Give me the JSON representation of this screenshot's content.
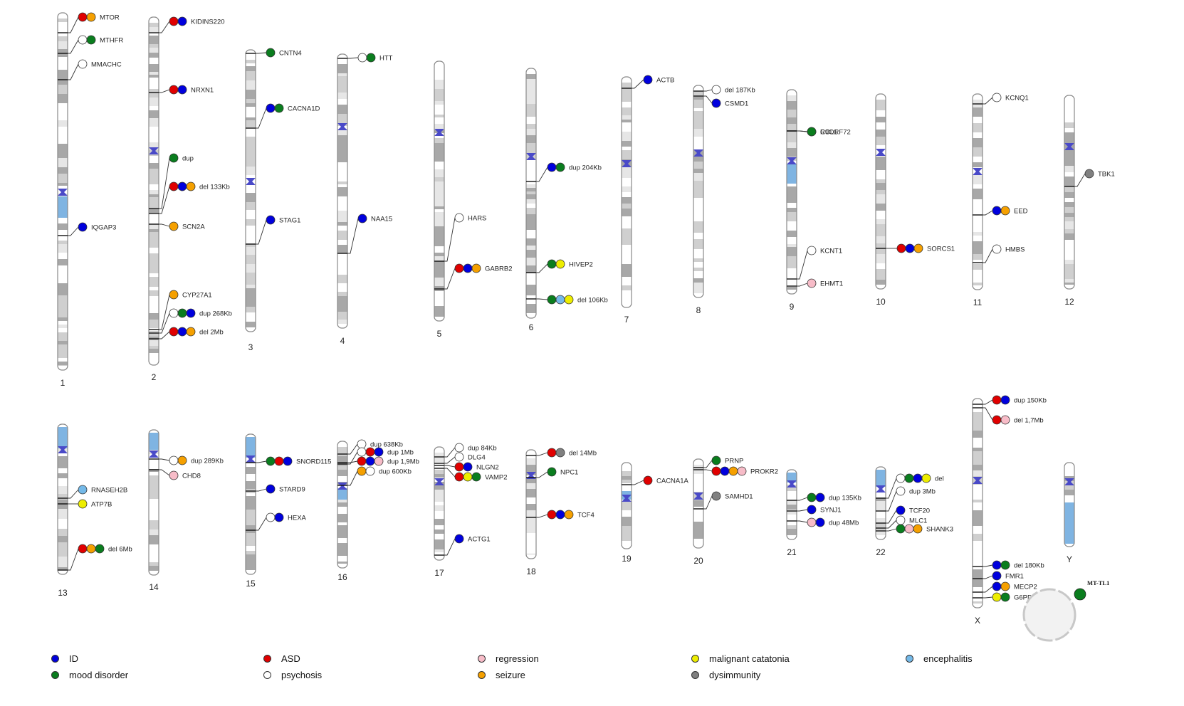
{
  "colors": {
    "ID": "#0000dd",
    "mood disorder": "#0a7d1e",
    "ASD": "#e00000",
    "psychosis": "#ffffff",
    "regression": "#f7bcc8",
    "seizure": "#f5a000",
    "malignant catatonia": "#eded00",
    "dysimmunity": "#808080",
    "encephalitis": "#74b9e8"
  },
  "legend": [
    {
      "label": "ID",
      "color_key": "ID"
    },
    {
      "label": "mood disorder",
      "color_key": "mood disorder"
    },
    {
      "label": "ASD",
      "color_key": "ASD"
    },
    {
      "label": "psychosis",
      "color_key": "psychosis"
    },
    {
      "label": "regression",
      "color_key": "regression"
    },
    {
      "label": "seizure",
      "color_key": "seizure"
    },
    {
      "label": "malignant catatonia",
      "color_key": "malignant catatonia"
    },
    {
      "label": "dysimmunity",
      "color_key": "dysimmunity"
    },
    {
      "label": "encephalitis",
      "color_key": "encephalitis"
    }
  ],
  "chromosomes": [
    {
      "name": "1",
      "loci": [
        {
          "label": "MTOR",
          "d": [
            "ASD",
            "seizure"
          ]
        },
        {
          "label": "MTHFR",
          "d": [
            "psychosis",
            "mood disorder"
          ]
        },
        {
          "label": "MMACHC",
          "d": [
            "psychosis"
          ]
        },
        {
          "label": "IQGAP3",
          "d": [
            "ID"
          ]
        }
      ]
    },
    {
      "name": "2",
      "loci": [
        {
          "label": "KIDINS220",
          "d": [
            "ASD",
            "ID"
          ]
        },
        {
          "label": "NRXN1",
          "d": [
            "ASD",
            "ID"
          ]
        },
        {
          "label": "dup",
          "d": [
            "mood disorder"
          ]
        },
        {
          "label": "del 133Kb",
          "d": [
            "ASD",
            "ID",
            "seizure"
          ]
        },
        {
          "label": "SCN2A",
          "d": [
            "seizure"
          ]
        },
        {
          "label": "CYP27A1",
          "d": [
            "seizure"
          ]
        },
        {
          "label": "dup 268Kb",
          "d": [
            "psychosis",
            "mood disorder",
            "ID"
          ]
        },
        {
          "label": "del 2Mb",
          "d": [
            "ASD",
            "ID",
            "seizure"
          ]
        }
      ]
    },
    {
      "name": "3",
      "loci": [
        {
          "label": "CNTN4",
          "d": [
            "mood disorder"
          ]
        },
        {
          "label": "CACNA1D",
          "d": [
            "ID",
            "mood disorder"
          ]
        },
        {
          "label": "STAG1",
          "d": [
            "ID"
          ]
        }
      ]
    },
    {
      "name": "4",
      "loci": [
        {
          "label": "HTT",
          "d": [
            "psychosis",
            "mood disorder"
          ]
        },
        {
          "label": "NAA15",
          "d": [
            "ID"
          ]
        }
      ]
    },
    {
      "name": "5",
      "loci": [
        {
          "label": "HARS",
          "d": [
            "psychosis"
          ]
        },
        {
          "label": "GABRB2",
          "d": [
            "ASD",
            "ID",
            "seizure"
          ]
        }
      ]
    },
    {
      "name": "6",
      "loci": [
        {
          "label": "dup 204Kb",
          "d": [
            "ID",
            "mood disorder"
          ]
        },
        {
          "label": "HIVEP2",
          "d": [
            "mood disorder",
            "malignant catatonia"
          ]
        },
        {
          "label": "del 106Kb",
          "d": [
            "mood disorder",
            "encephalitis",
            "malignant catatonia"
          ]
        }
      ]
    },
    {
      "name": "7",
      "loci": [
        {
          "label": "ACTB",
          "d": [
            "ID"
          ]
        }
      ]
    },
    {
      "name": "8",
      "loci": [
        {
          "label": "del 187Kb",
          "d": [
            "psychosis"
          ]
        },
        {
          "label": "CSMD1",
          "d": [
            "ID"
          ]
        }
      ]
    },
    {
      "name": "9",
      "loci": [
        {
          "label": "RCL1",
          "d": [
            "psychosis"
          ]
        },
        {
          "label": "C9ORF72",
          "d": [
            "mood disorder"
          ]
        },
        {
          "label": "KCNT1",
          "d": [
            "psychosis"
          ]
        },
        {
          "label": "EHMT1",
          "d": [
            "regression"
          ]
        }
      ]
    },
    {
      "name": "10",
      "loci": [
        {
          "label": "SORCS1",
          "d": [
            "ASD",
            "ID",
            "seizure"
          ]
        }
      ]
    },
    {
      "name": "11",
      "loci": [
        {
          "label": "KCNQ1",
          "d": [
            "psychosis"
          ]
        },
        {
          "label": "EED",
          "d": [
            "ID",
            "seizure"
          ]
        },
        {
          "label": "HMBS",
          "d": [
            "psychosis"
          ]
        }
      ]
    },
    {
      "name": "12",
      "loci": [
        {
          "label": "TBK1",
          "d": [
            "dysimmunity"
          ]
        }
      ]
    },
    {
      "name": "13",
      "loci": [
        {
          "label": "RNASEH2B",
          "d": [
            "encephalitis"
          ]
        },
        {
          "label": "ATP7B",
          "d": [
            "malignant catatonia"
          ]
        },
        {
          "label": "del 6Mb",
          "d": [
            "ASD",
            "seizure",
            "mood disorder"
          ]
        }
      ]
    },
    {
      "name": "14",
      "loci": [
        {
          "label": "dup 289Kb",
          "d": [
            "psychosis",
            "seizure"
          ]
        },
        {
          "label": "CHD8",
          "d": [
            "regression"
          ]
        }
      ]
    },
    {
      "name": "15",
      "loci": [
        {
          "label": "SNORD115",
          "d": [
            "mood disorder",
            "ASD",
            "ID"
          ]
        },
        {
          "label": "STARD9",
          "d": [
            "ID"
          ]
        },
        {
          "label": "HEXA",
          "d": [
            "psychosis",
            "ID"
          ]
        }
      ]
    },
    {
      "name": "16",
      "loci": [
        {
          "label": "dup 638Kb",
          "d": [
            "psychosis"
          ]
        },
        {
          "label": "dup 1Mb",
          "d": [
            "psychosis",
            "ASD",
            "ID"
          ]
        },
        {
          "label": "dup 1,9Mb",
          "d": [
            "ASD",
            "ID",
            "regression"
          ]
        },
        {
          "label": "dup 600Kb",
          "d": [
            "seizure",
            "psychosis"
          ]
        }
      ]
    },
    {
      "name": "17",
      "loci": [
        {
          "label": "dup 84Kb",
          "d": [
            "psychosis"
          ]
        },
        {
          "label": "DLG4",
          "d": [
            "psychosis"
          ]
        },
        {
          "label": "NLGN2",
          "d": [
            "ASD",
            "ID"
          ]
        },
        {
          "label": "VAMP2",
          "d": [
            "ASD",
            "malignant catatonia",
            "mood disorder"
          ]
        },
        {
          "label": "ACTG1",
          "d": [
            "ID"
          ]
        }
      ]
    },
    {
      "name": "18",
      "loci": [
        {
          "label": "del 14Mb",
          "d": [
            "ASD",
            "dysimmunity"
          ]
        },
        {
          "label": "NPC1",
          "d": [
            "mood disorder"
          ]
        },
        {
          "label": "TCF4",
          "d": [
            "ASD",
            "ID",
            "seizure"
          ]
        }
      ]
    },
    {
      "name": "19",
      "loci": [
        {
          "label": "CACNA1A",
          "d": [
            "ASD"
          ]
        }
      ]
    },
    {
      "name": "20",
      "loci": [
        {
          "label": "PRNP",
          "d": [
            "mood disorder"
          ]
        },
        {
          "label": "PROKR2",
          "d": [
            "ASD",
            "ID",
            "seizure",
            "regression"
          ]
        },
        {
          "label": "SAMHD1",
          "d": [
            "dysimmunity"
          ]
        }
      ]
    },
    {
      "name": "21",
      "loci": [
        {
          "label": "dup 135Kb",
          "d": [
            "mood disorder",
            "ID"
          ]
        },
        {
          "label": "SYNJ1",
          "d": [
            "ID"
          ]
        },
        {
          "label": "dup 48Mb",
          "d": [
            "regression",
            "ID"
          ]
        }
      ]
    },
    {
      "name": "22",
      "loci": [
        {
          "label": "del",
          "d": [
            "psychosis",
            "mood disorder",
            "ID",
            "malignant catatonia"
          ]
        },
        {
          "label": "dup 3Mb",
          "d": [
            "psychosis"
          ]
        },
        {
          "label": "TCF20",
          "d": [
            "ID"
          ]
        },
        {
          "label": "MLC1",
          "d": [
            "psychosis"
          ]
        },
        {
          "label": "SHANK3",
          "d": [
            "mood disorder",
            "regression",
            "seizure"
          ]
        }
      ]
    },
    {
      "name": "X",
      "loci": [
        {
          "label": "dup 150Kb",
          "d": [
            "ASD",
            "ID"
          ]
        },
        {
          "label": "del 1,7Mb",
          "d": [
            "ASD",
            "regression"
          ]
        },
        {
          "label": "del 180Kb",
          "d": [
            "ID",
            "mood disorder"
          ]
        },
        {
          "label": "FMR1",
          "d": [
            "ID"
          ]
        },
        {
          "label": "MECP2",
          "d": [
            "ID",
            "seizure"
          ]
        },
        {
          "label": "G6PD",
          "d": [
            "malignant catatonia",
            "mood disorder"
          ]
        }
      ]
    },
    {
      "name": "Y",
      "loci": []
    }
  ],
  "mito": {
    "label": "MT-TL1",
    "d": [
      "mood disorder"
    ]
  }
}
